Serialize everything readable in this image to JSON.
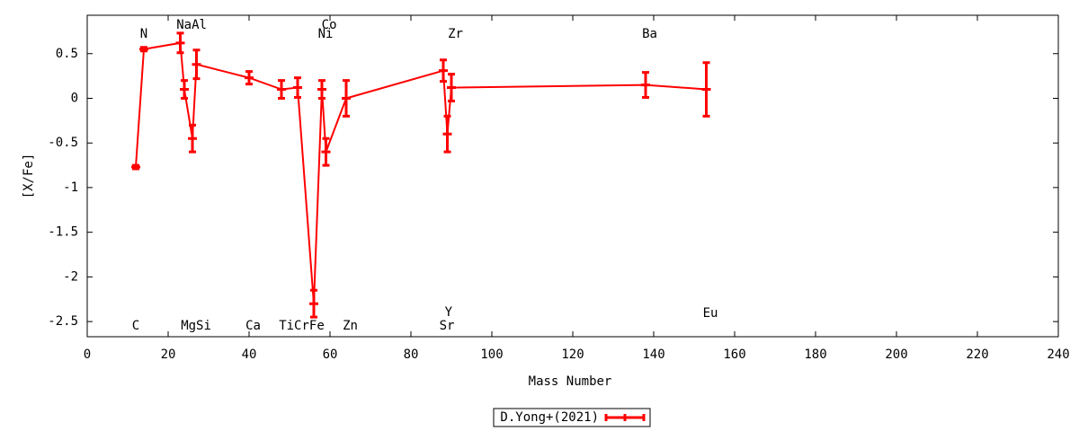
{
  "chart_data": {
    "type": "errorline",
    "xlabel": "Mass Number",
    "ylabel": "[X/Fe]",
    "x": [
      12,
      14,
      23,
      24,
      26,
      27,
      40,
      48,
      52,
      56,
      58,
      59,
      64,
      88,
      89,
      90,
      138,
      153
    ],
    "series": [
      {
        "name": "D.Yong+(2021)",
        "color": "#ff0000",
        "values": [
          -0.77,
          0.55,
          0.62,
          0.1,
          -0.45,
          0.38,
          0.23,
          0.1,
          0.12,
          -2.3,
          0.1,
          -0.6,
          0.0,
          0.31,
          -0.4,
          0.12,
          0.15,
          0.1
        ],
        "errors": [
          0.02,
          0.02,
          0.11,
          0.1,
          0.15,
          0.16,
          0.07,
          0.1,
          0.11,
          0.15,
          0.1,
          0.15,
          0.2,
          0.12,
          0.2,
          0.15,
          0.14,
          0.3
        ]
      }
    ],
    "annotations": [
      {
        "text": "N",
        "x": 14,
        "y": 0.72
      },
      {
        "text": "NaAl",
        "x": 25.8,
        "y": 0.82
      },
      {
        "text": "Co",
        "x": 59.8,
        "y": 0.82
      },
      {
        "text": "Ni",
        "x": 58.9,
        "y": 0.72
      },
      {
        "text": "Zr",
        "x": 91,
        "y": 0.72
      },
      {
        "text": "Ba",
        "x": 139,
        "y": 0.72
      },
      {
        "text": "C",
        "x": 12,
        "y": -2.55
      },
      {
        "text": "MgSi",
        "x": 26.9,
        "y": -2.55
      },
      {
        "text": "Ca",
        "x": 41,
        "y": -2.55
      },
      {
        "text": "TiCrFe",
        "x": 53,
        "y": -2.55
      },
      {
        "text": "Zn",
        "x": 65,
        "y": -2.55
      },
      {
        "text": "Sr",
        "x": 88.9,
        "y": -2.55
      },
      {
        "text": "Y",
        "x": 89.3,
        "y": -2.4
      },
      {
        "text": "Eu",
        "x": 154,
        "y": -2.41
      }
    ],
    "xlim": [
      0,
      240
    ],
    "xticks": [
      0,
      20,
      40,
      60,
      80,
      100,
      120,
      140,
      160,
      180,
      200,
      220,
      240
    ],
    "ylim": [
      -2.67,
      0.93
    ],
    "yticks": [
      -2.5,
      -2,
      -1.5,
      -1,
      -0.5,
      0,
      0.5
    ],
    "legend": "bottom"
  }
}
